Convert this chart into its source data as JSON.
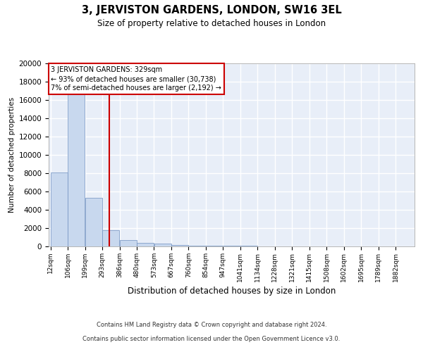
{
  "title": "3, JERVISTON GARDENS, LONDON, SW16 3EL",
  "subtitle": "Size of property relative to detached houses in London",
  "xlabel": "Distribution of detached houses by size in London",
  "ylabel": "Number of detached properties",
  "bar_color": "#c8d8ee",
  "bar_edge_color": "#7090c0",
  "background_color": "#e8eef8",
  "grid_color": "#ffffff",
  "bin_labels": [
    "12sqm",
    "106sqm",
    "199sqm",
    "293sqm",
    "386sqm",
    "480sqm",
    "573sqm",
    "667sqm",
    "760sqm",
    "854sqm",
    "947sqm",
    "1041sqm",
    "1134sqm",
    "1228sqm",
    "1321sqm",
    "1415sqm",
    "1508sqm",
    "1602sqm",
    "1695sqm",
    "1789sqm",
    "1882sqm"
  ],
  "bar_heights": [
    8100,
    16700,
    5300,
    1750,
    700,
    400,
    270,
    150,
    100,
    80,
    60,
    50,
    30,
    20,
    20,
    10,
    10,
    5,
    5,
    3,
    3
  ],
  "bin_edges": [
    12,
    106,
    199,
    293,
    386,
    480,
    573,
    667,
    760,
    854,
    947,
    1041,
    1134,
    1228,
    1321,
    1415,
    1508,
    1602,
    1695,
    1789,
    1882,
    1975
  ],
  "property_size": 329,
  "red_line_color": "#cc0000",
  "annotation_text": "3 JERVISTON GARDENS: 329sqm\n← 93% of detached houses are smaller (30,738)\n7% of semi-detached houses are larger (2,192) →",
  "annotation_box_color": "#cc0000",
  "ylim": [
    0,
    20000
  ],
  "yticks": [
    0,
    2000,
    4000,
    6000,
    8000,
    10000,
    12000,
    14000,
    16000,
    18000,
    20000
  ],
  "footer_line1": "Contains HM Land Registry data © Crown copyright and database right 2024.",
  "footer_line2": "Contains public sector information licensed under the Open Government Licence v3.0."
}
